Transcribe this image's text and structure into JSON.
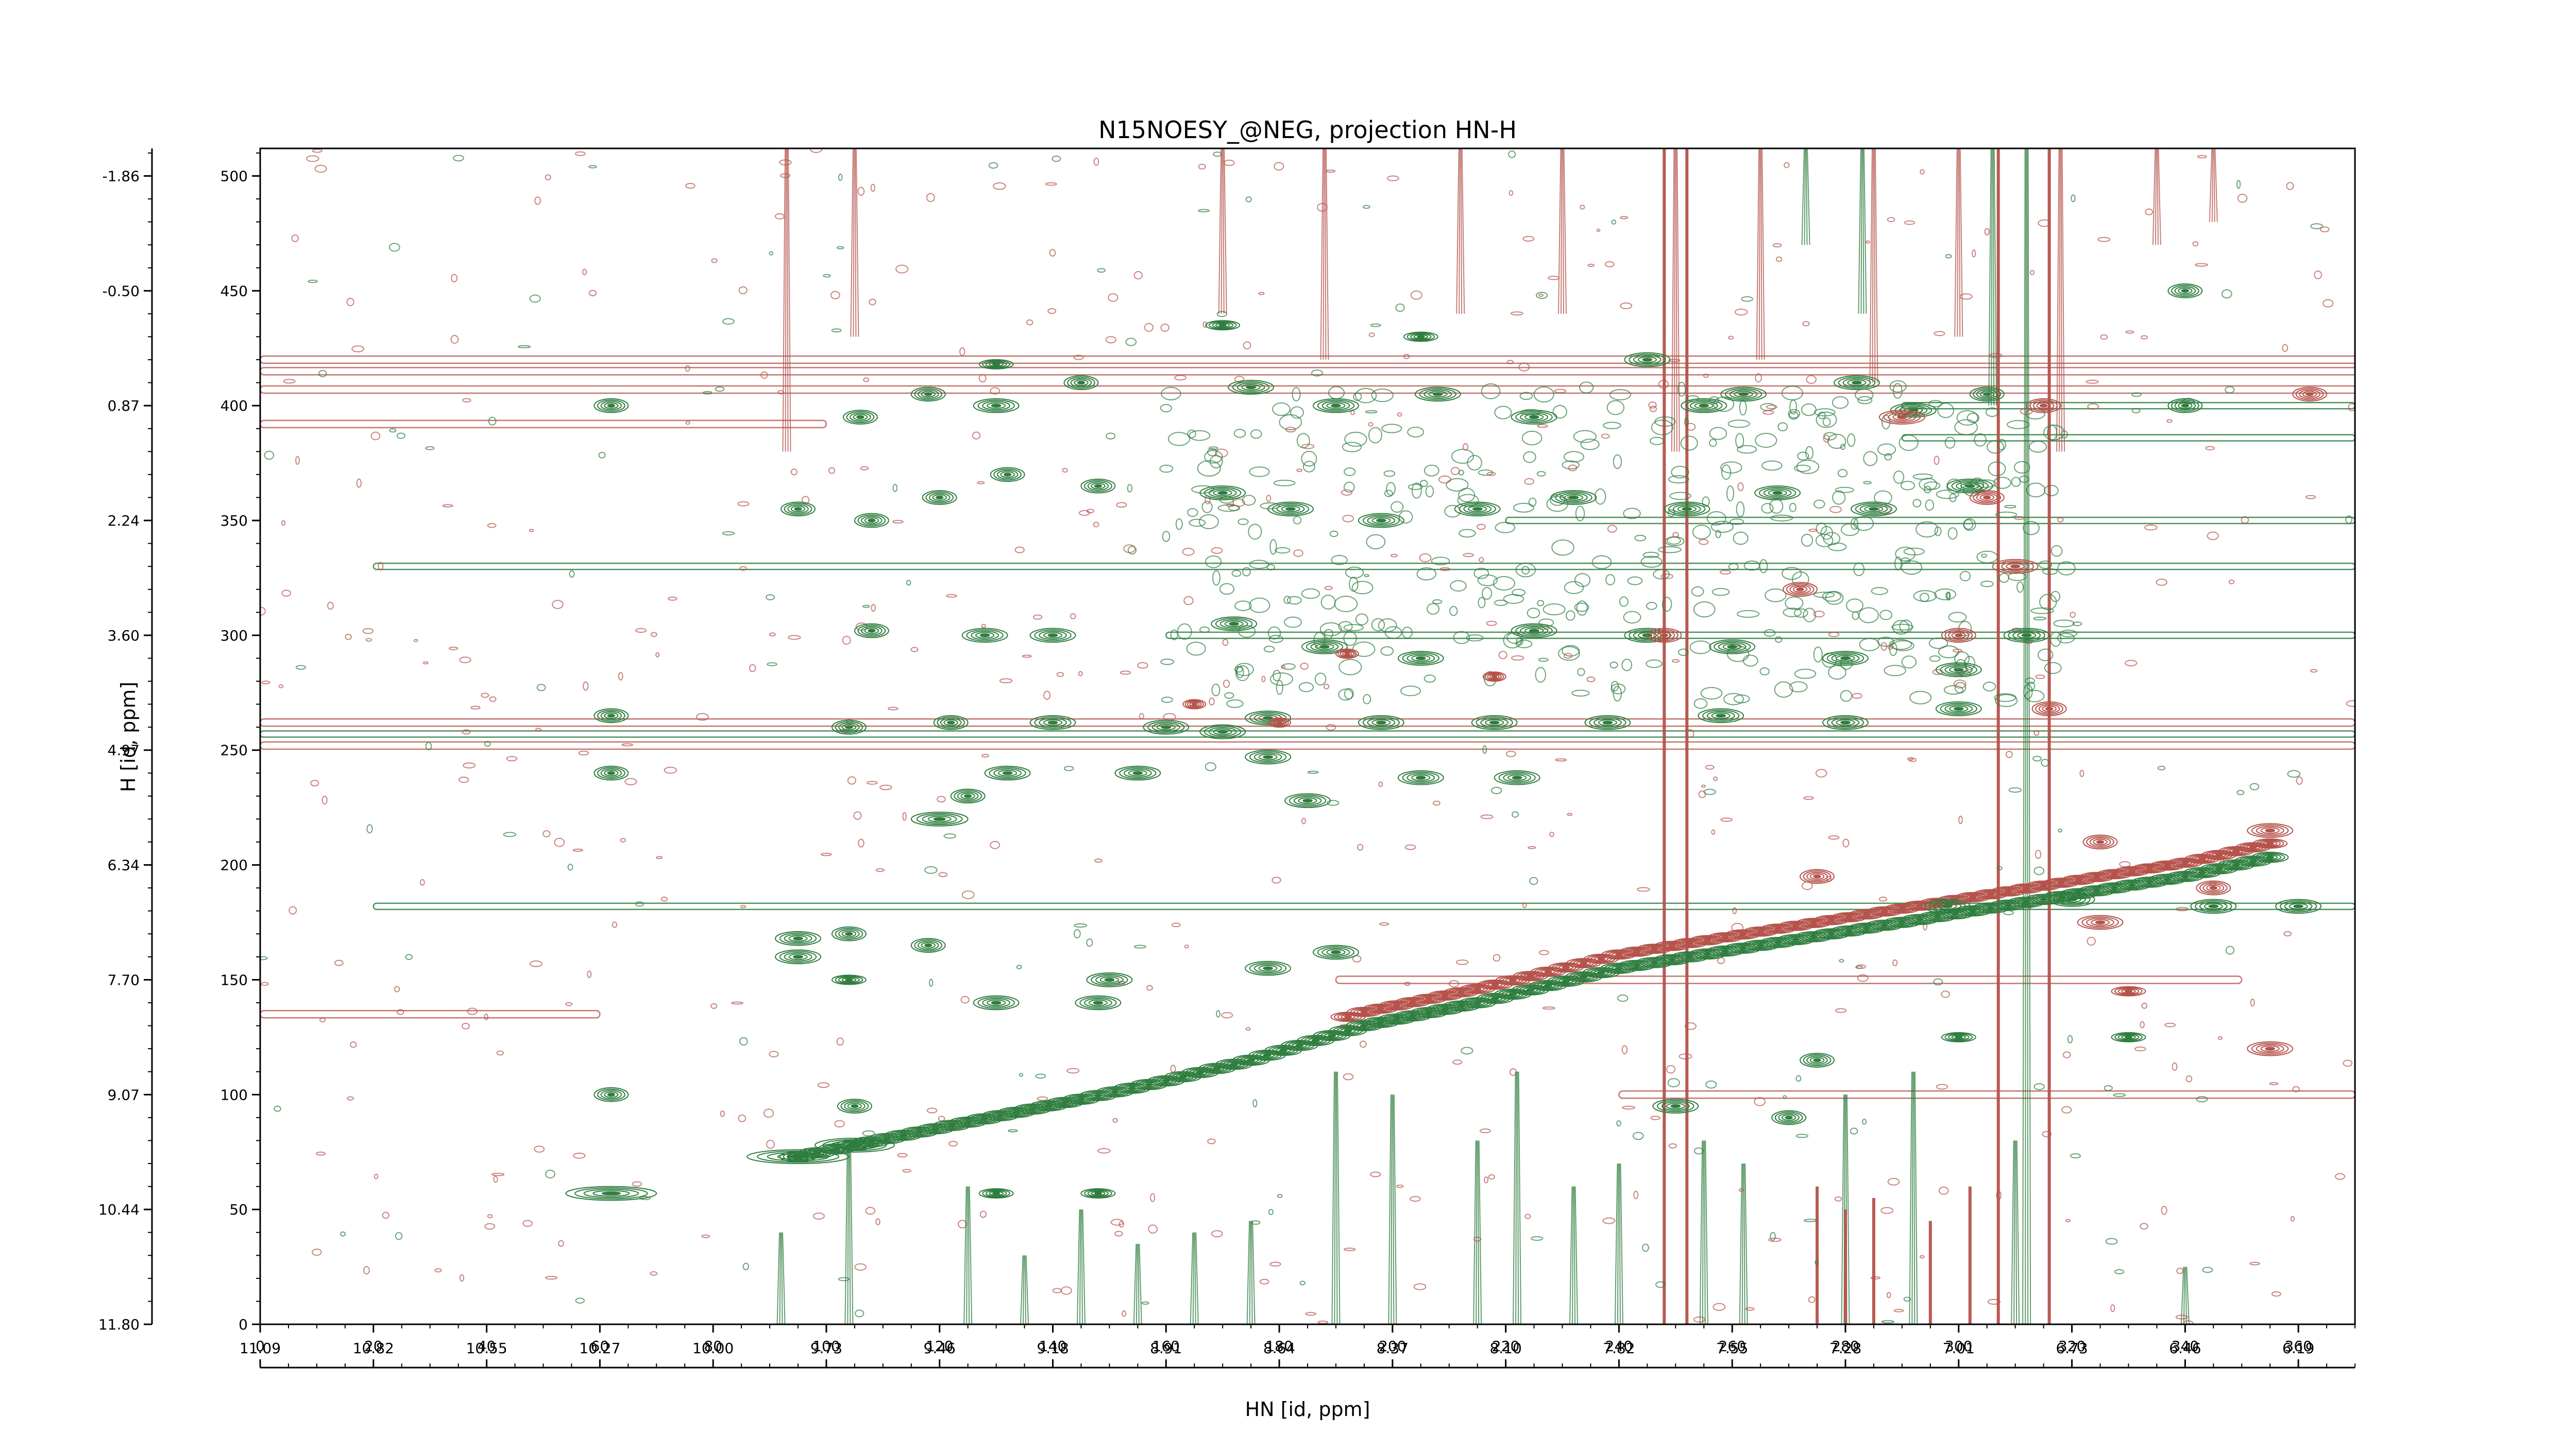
{
  "chart_data": {
    "type": "heatmap",
    "title": "N15NOESY_@NEG, projection HN-H",
    "xlabel": "HN [id, ppm]",
    "ylabel": "H [id, ppm]",
    "x_points": {
      "range": [
        0,
        370
      ],
      "major_ticks": [
        0,
        20,
        40,
        60,
        80,
        100,
        120,
        140,
        160,
        180,
        200,
        220,
        240,
        260,
        280,
        300,
        320,
        340,
        360
      ]
    },
    "y_points": {
      "range": [
        0,
        512
      ],
      "major_ticks": [
        0,
        50,
        100,
        150,
        200,
        250,
        300,
        350,
        400,
        450,
        500
      ]
    },
    "x_ppm_ticks": [
      "11.09",
      "10.82",
      "10.55",
      "10.27",
      "10.00",
      "9.73",
      "9.46",
      "9.18",
      "8.91",
      "8.64",
      "8.37",
      "8.10",
      "7.82",
      "7.55",
      "7.28",
      "7.01",
      "6.73",
      "6.46",
      "6.19"
    ],
    "y_ppm_ticks": [
      "11.80",
      "10.44",
      "9.07",
      "7.70",
      "6.34",
      "4.97",
      "3.60",
      "2.24",
      "0.87",
      "-0.50",
      "-1.86"
    ],
    "positive_color": "#2e7d3e",
    "negative_color": "#b5524a",
    "diagonal": [
      [
        95,
        73
      ],
      [
        105,
        78
      ],
      [
        125,
        88
      ],
      [
        145,
        98
      ],
      [
        160,
        106
      ],
      [
        175,
        115
      ],
      [
        195,
        130
      ],
      [
        215,
        140
      ],
      [
        240,
        155
      ],
      [
        265,
        165
      ],
      [
        290,
        175
      ],
      [
        315,
        185
      ],
      [
        340,
        195
      ],
      [
        358,
        205
      ]
    ],
    "positive_peaks": [
      [
        62,
        57,
        8,
        3
      ],
      [
        62,
        100,
        3,
        3
      ],
      [
        95,
        73,
        9,
        3
      ],
      [
        105,
        78,
        7,
        3
      ],
      [
        105,
        95,
        3,
        3
      ],
      [
        130,
        57,
        3,
        2
      ],
      [
        148,
        57,
        3,
        2
      ],
      [
        95,
        160,
        4,
        3
      ],
      [
        95,
        168,
        4,
        3
      ],
      [
        104,
        150,
        3,
        2
      ],
      [
        104,
        170,
        3,
        3
      ],
      [
        118,
        165,
        3,
        3
      ],
      [
        130,
        140,
        4,
        3
      ],
      [
        148,
        140,
        4,
        3
      ],
      [
        150,
        150,
        4,
        3
      ],
      [
        178,
        155,
        4,
        3
      ],
      [
        190,
        162,
        4,
        3
      ],
      [
        120,
        220,
        5,
        3
      ],
      [
        125,
        230,
        3,
        3
      ],
      [
        132,
        240,
        4,
        3
      ],
      [
        155,
        240,
        4,
        3
      ],
      [
        170,
        258,
        4,
        3
      ],
      [
        178,
        247,
        4,
        3
      ],
      [
        185,
        228,
        4,
        3
      ],
      [
        205,
        238,
        4,
        3
      ],
      [
        222,
        238,
        4,
        3
      ],
      [
        62,
        240,
        3,
        3
      ],
      [
        62,
        265,
        3,
        3
      ],
      [
        104,
        260,
        3,
        3
      ],
      [
        122,
        262,
        3,
        3
      ],
      [
        140,
        262,
        4,
        3
      ],
      [
        160,
        260,
        4,
        3
      ],
      [
        178,
        264,
        4,
        3
      ],
      [
        198,
        262,
        4,
        3
      ],
      [
        218,
        262,
        4,
        3
      ],
      [
        238,
        262,
        4,
        3
      ],
      [
        258,
        265,
        4,
        3
      ],
      [
        280,
        262,
        4,
        3
      ],
      [
        300,
        268,
        4,
        3
      ],
      [
        108,
        302,
        3,
        3
      ],
      [
        128,
        300,
        4,
        3
      ],
      [
        140,
        300,
        4,
        3
      ],
      [
        172,
        305,
        4,
        3
      ],
      [
        188,
        295,
        4,
        3
      ],
      [
        205,
        290,
        4,
        3
      ],
      [
        225,
        302,
        4,
        3
      ],
      [
        245,
        300,
        4,
        3
      ],
      [
        260,
        295,
        4,
        3
      ],
      [
        280,
        290,
        4,
        3
      ],
      [
        300,
        285,
        4,
        3
      ],
      [
        312,
        300,
        4,
        3
      ],
      [
        95,
        355,
        3,
        3
      ],
      [
        108,
        350,
        3,
        3
      ],
      [
        120,
        360,
        3,
        3
      ],
      [
        132,
        370,
        3,
        3
      ],
      [
        148,
        365,
        3,
        3
      ],
      [
        170,
        362,
        4,
        3
      ],
      [
        182,
        355,
        4,
        3
      ],
      [
        198,
        350,
        4,
        3
      ],
      [
        215,
        355,
        4,
        3
      ],
      [
        232,
        360,
        4,
        3
      ],
      [
        252,
        355,
        4,
        3
      ],
      [
        268,
        362,
        4,
        3
      ],
      [
        285,
        355,
        4,
        3
      ],
      [
        302,
        365,
        4,
        3
      ],
      [
        62,
        400,
        3,
        3
      ],
      [
        106,
        395,
        3,
        3
      ],
      [
        118,
        405,
        3,
        3
      ],
      [
        130,
        400,
        4,
        3
      ],
      [
        145,
        410,
        3,
        3
      ],
      [
        175,
        408,
        4,
        3
      ],
      [
        190,
        400,
        4,
        3
      ],
      [
        208,
        405,
        4,
        3
      ],
      [
        225,
        395,
        4,
        3
      ],
      [
        245,
        420,
        4,
        3
      ],
      [
        262,
        405,
        4,
        3
      ],
      [
        282,
        410,
        4,
        3
      ],
      [
        305,
        405,
        3,
        3
      ],
      [
        340,
        400,
        3,
        3
      ],
      [
        340,
        450,
        3,
        3
      ],
      [
        130,
        418,
        3,
        2
      ],
      [
        170,
        435,
        3,
        2
      ],
      [
        205,
        430,
        3,
        2
      ],
      [
        255,
        400,
        4,
        3
      ],
      [
        292,
        398,
        4,
        3
      ],
      [
        298,
        182,
        4,
        3
      ],
      [
        320,
        185,
        4,
        3
      ],
      [
        345,
        182,
        4,
        3
      ],
      [
        360,
        182,
        4,
        3
      ],
      [
        330,
        125,
        3,
        2
      ],
      [
        300,
        125,
        3,
        2
      ],
      [
        275,
        115,
        3,
        3
      ],
      [
        250,
        95,
        4,
        3
      ],
      [
        270,
        90,
        3,
        3
      ]
    ],
    "negative_peaks": [
      [
        355,
        215,
        4,
        3
      ],
      [
        355,
        120,
        4,
        3
      ],
      [
        330,
        145,
        3,
        2
      ],
      [
        300,
        300,
        3,
        3
      ],
      [
        310,
        330,
        4,
        3
      ],
      [
        316,
        268,
        3,
        3
      ],
      [
        272,
        320,
        3,
        3
      ],
      [
        248,
        300,
        3,
        3
      ],
      [
        218,
        282,
        2,
        2
      ],
      [
        192,
        292,
        2,
        2
      ],
      [
        165,
        270,
        2,
        2
      ],
      [
        180,
        262,
        2,
        2
      ],
      [
        325,
        175,
        4,
        3
      ],
      [
        345,
        190,
        3,
        3
      ],
      [
        362,
        405,
        3,
        3
      ],
      [
        290,
        395,
        4,
        3
      ],
      [
        305,
        360,
        3,
        3
      ],
      [
        315,
        400,
        3,
        3
      ],
      [
        325,
        210,
        3,
        3
      ],
      [
        275,
        195,
        3,
        3
      ]
    ],
    "negative_bands": [
      [
        0,
        420,
        380
      ],
      [
        0,
        415,
        400
      ],
      [
        0,
        407,
        400
      ],
      [
        0,
        392,
        100
      ],
      [
        0,
        262,
        370
      ],
      [
        0,
        252,
        370
      ],
      [
        0,
        135,
        60
      ],
      [
        160,
        380,
        60
      ],
      [
        190,
        150,
        350
      ],
      [
        240,
        100,
        370
      ]
    ],
    "positive_bands": [
      [
        0,
        257,
        370
      ],
      [
        20,
        182,
        370
      ],
      [
        20,
        330,
        370
      ],
      [
        160,
        300,
        370
      ],
      [
        220,
        350,
        370
      ],
      [
        290,
        400,
        370
      ],
      [
        290,
        386,
        370
      ]
    ],
    "neg_vertical": [
      [
        93,
        380,
        512
      ],
      [
        105,
        430,
        512
      ],
      [
        170,
        440,
        512
      ],
      [
        188,
        420,
        512
      ],
      [
        212,
        440,
        512
      ],
      [
        230,
        440,
        512
      ],
      [
        250,
        380,
        512
      ],
      [
        265,
        420,
        512
      ],
      [
        285,
        410,
        512
      ],
      [
        300,
        430,
        512
      ],
      [
        318,
        380,
        512
      ],
      [
        335,
        470,
        512
      ],
      [
        345,
        480,
        512
      ]
    ],
    "pos_vertical": [
      [
        92,
        0,
        40
      ],
      [
        104,
        0,
        80
      ],
      [
        125,
        0,
        60
      ],
      [
        135,
        0,
        30
      ],
      [
        145,
        0,
        50
      ],
      [
        155,
        0,
        35
      ],
      [
        165,
        0,
        40
      ],
      [
        175,
        0,
        45
      ],
      [
        190,
        0,
        110
      ],
      [
        200,
        0,
        100
      ],
      [
        215,
        0,
        80
      ],
      [
        222,
        0,
        110
      ],
      [
        232,
        0,
        60
      ],
      [
        240,
        0,
        70
      ],
      [
        255,
        0,
        80
      ],
      [
        262,
        0,
        70
      ],
      [
        280,
        0,
        100
      ],
      [
        292,
        0,
        110
      ],
      [
        310,
        0,
        80
      ],
      [
        312,
        0,
        512
      ],
      [
        340,
        0,
        25
      ],
      [
        306,
        400,
        512
      ],
      [
        273,
        470,
        512
      ],
      [
        283,
        440,
        512
      ]
    ],
    "neg_stripes": [
      [
        248,
        0,
        512
      ],
      [
        252,
        0,
        512
      ],
      [
        275,
        0,
        60
      ],
      [
        280,
        0,
        50
      ],
      [
        285,
        0,
        55
      ],
      [
        295,
        0,
        45
      ],
      [
        302,
        0,
        60
      ],
      [
        307,
        0,
        512
      ],
      [
        316,
        0,
        512
      ]
    ]
  }
}
